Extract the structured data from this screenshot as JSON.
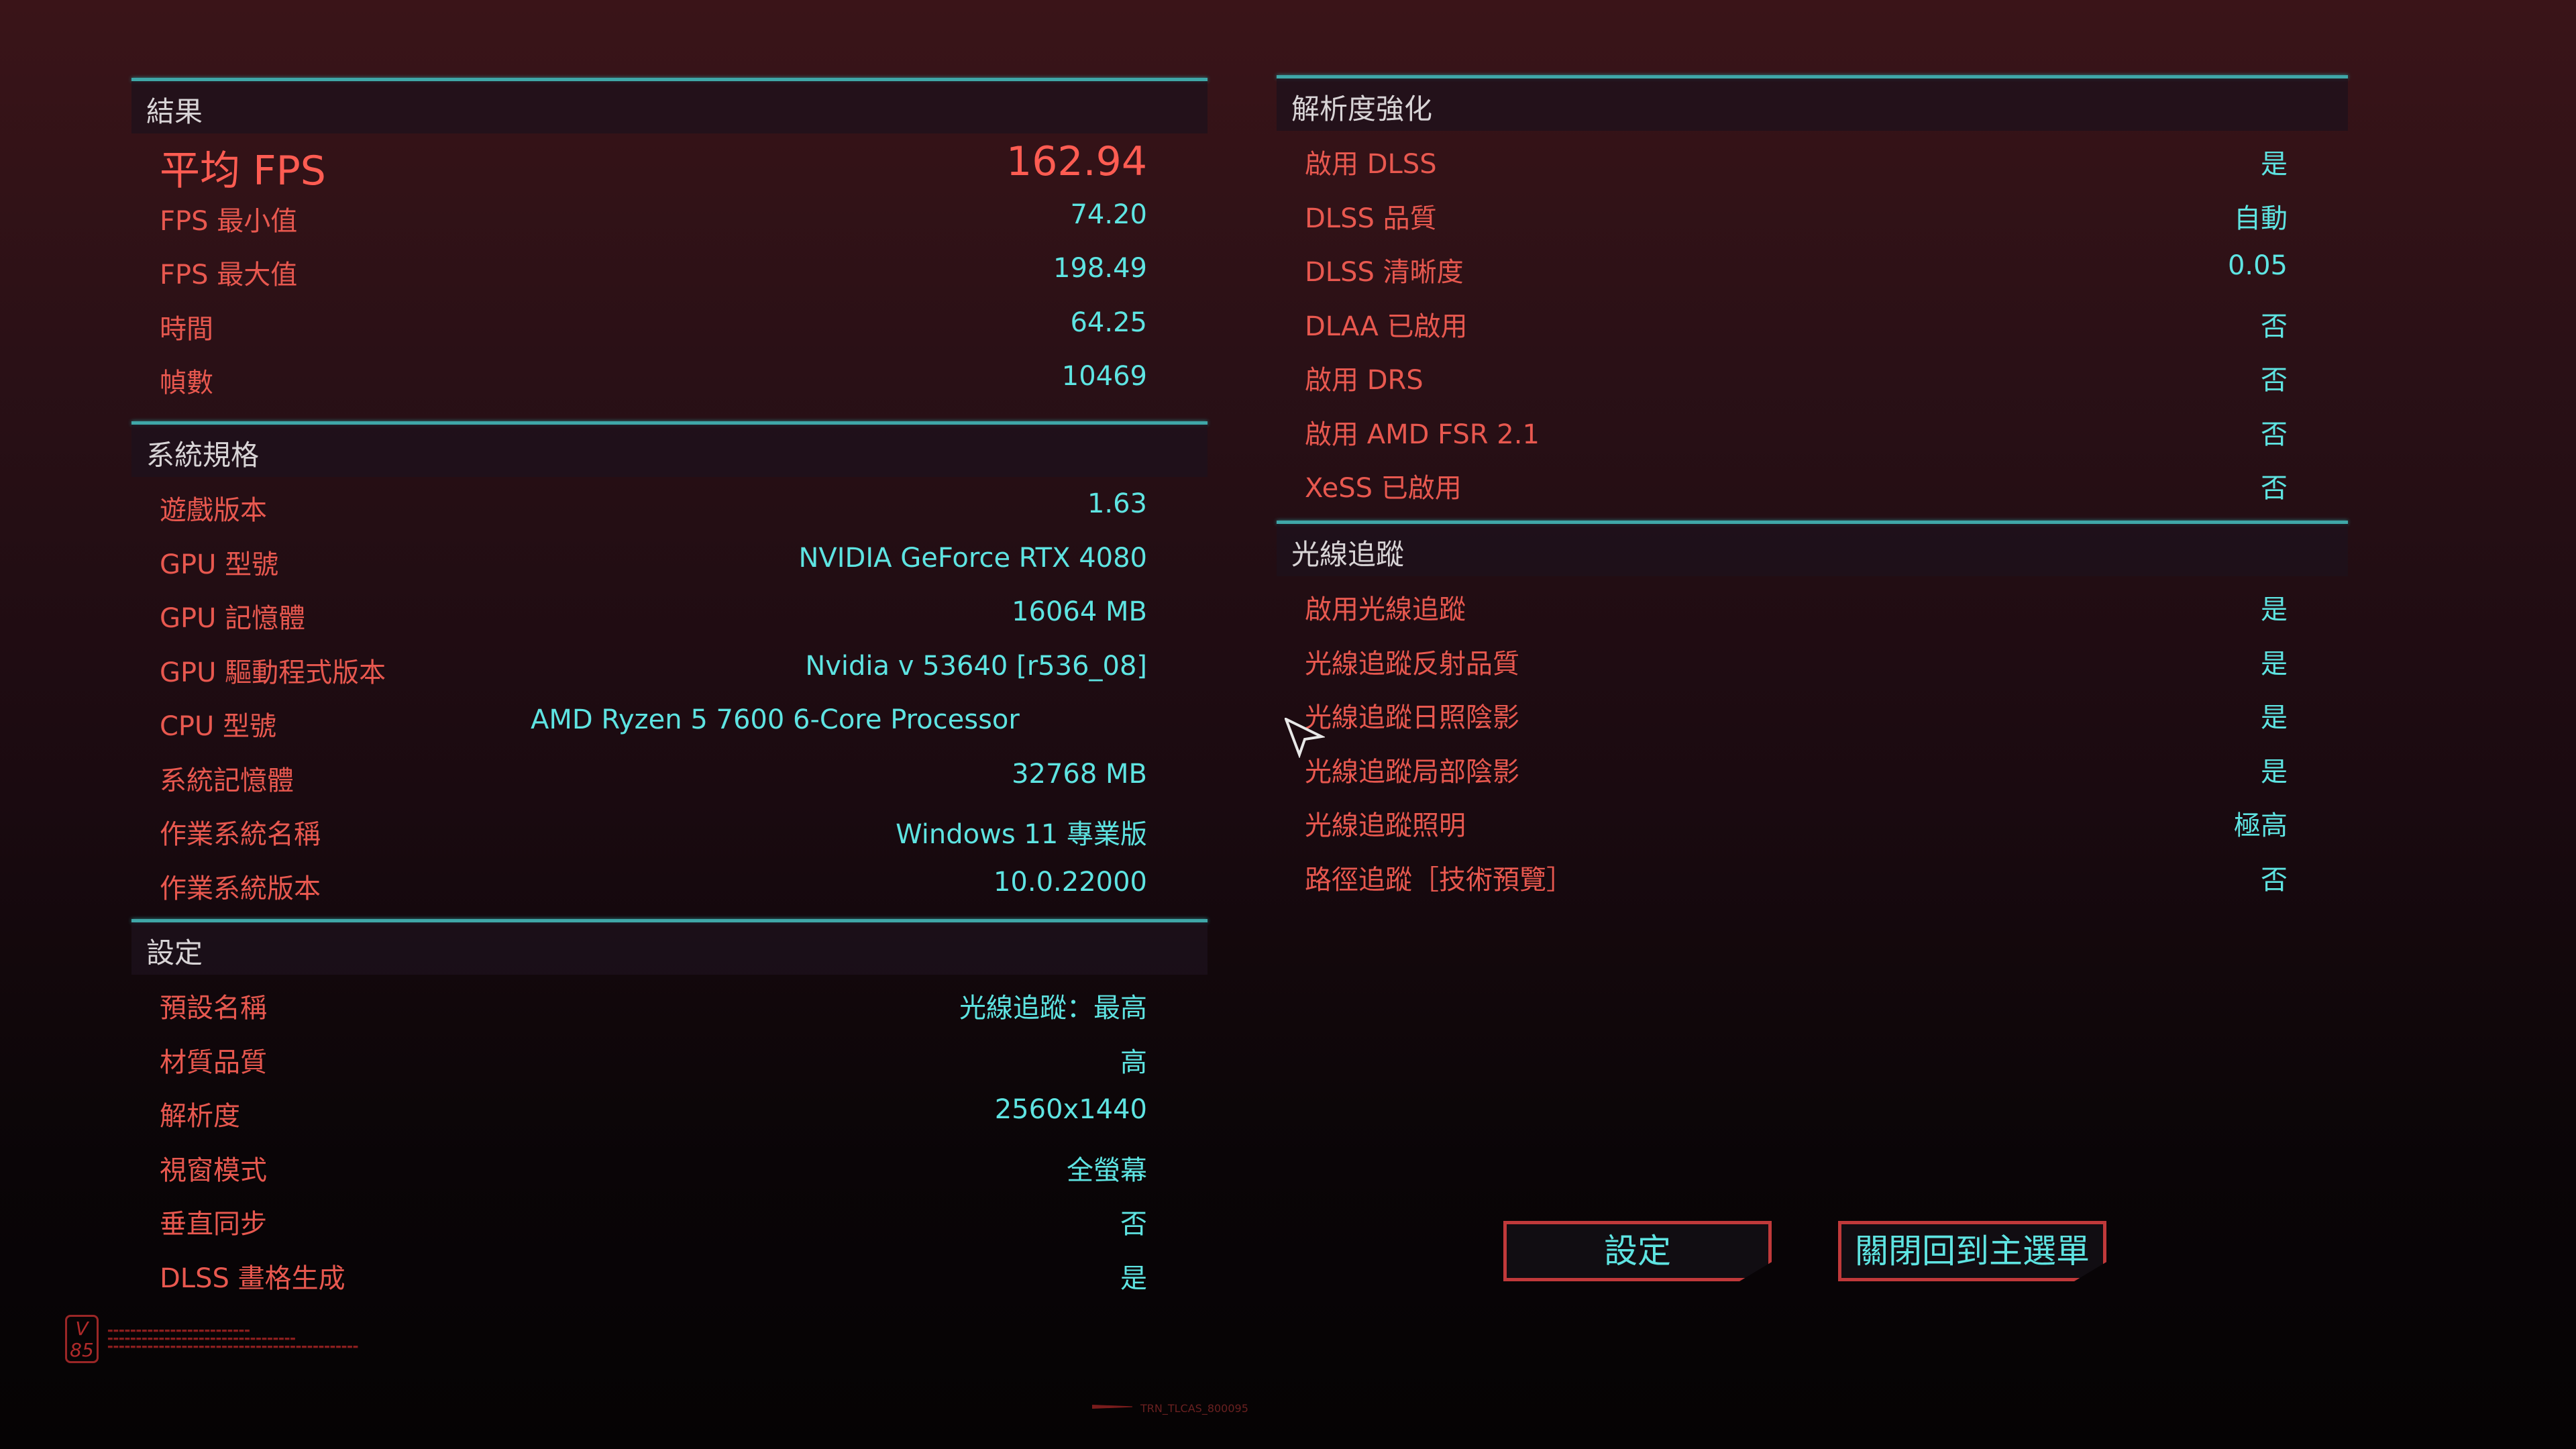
{
  "results": {
    "title": "結果",
    "rows": [
      {
        "label": "平均 FPS",
        "value": "162.94"
      },
      {
        "label": "FPS 最小值",
        "value": "74.20"
      },
      {
        "label": "FPS 最大值",
        "value": "198.49"
      },
      {
        "label": "時間",
        "value": "64.25"
      },
      {
        "label": "幀數",
        "value": "10469"
      }
    ]
  },
  "system": {
    "title": "系統規格",
    "rows": [
      {
        "label": "遊戲版本",
        "value": "1.63"
      },
      {
        "label": "GPU 型號",
        "value": "NVIDIA GeForce RTX 4080"
      },
      {
        "label": "GPU 記憶體",
        "value": "16064 MB"
      },
      {
        "label": "GPU 驅動程式版本",
        "value": "Nvidia v 53640 [r536_08]"
      },
      {
        "label": "CPU 型號",
        "value": "AMD Ryzen 5 7600 6-Core Processor"
      },
      {
        "label": "系統記憶體",
        "value": "32768 MB"
      },
      {
        "label": "作業系統名稱",
        "value": "Windows 11 專業版"
      },
      {
        "label": "作業系統版本",
        "value": "10.0.22000"
      }
    ]
  },
  "settings": {
    "title": "設定",
    "rows": [
      {
        "label": "預設名稱",
        "value": "光線追蹤：最高"
      },
      {
        "label": "材質品質",
        "value": "高"
      },
      {
        "label": "解析度",
        "value": "2560x1440"
      },
      {
        "label": "視窗模式",
        "value": "全螢幕"
      },
      {
        "label": "垂直同步",
        "value": "否"
      },
      {
        "label": "DLSS 畫格生成",
        "value": "是"
      }
    ]
  },
  "upscaling": {
    "title": "解析度強化",
    "rows": [
      {
        "label": "啟用 DLSS",
        "value": "是"
      },
      {
        "label": "DLSS 品質",
        "value": "自動"
      },
      {
        "label": "DLSS 清晰度",
        "value": "0.05"
      },
      {
        "label": "DLAA 已啟用",
        "value": "否"
      },
      {
        "label": "啟用 DRS",
        "value": "否"
      },
      {
        "label": "啟用 AMD FSR 2.1",
        "value": "否"
      },
      {
        "label": "XeSS 已啟用",
        "value": "否"
      }
    ]
  },
  "raytracing": {
    "title": "光線追蹤",
    "rows": [
      {
        "label": "啟用光線追蹤",
        "value": "是"
      },
      {
        "label": "光線追蹤反射品質",
        "value": "是"
      },
      {
        "label": "光線追蹤日照陰影",
        "value": "是"
      },
      {
        "label": "光線追蹤局部陰影",
        "value": "是"
      },
      {
        "label": "光線追蹤照明",
        "value": "極高"
      },
      {
        "label": "路徑追蹤［技術預覽］",
        "value": "否"
      }
    ]
  },
  "buttons": {
    "settings": "設定",
    "close_to_main_menu": "關閉回到主選單"
  },
  "footer": {
    "rating_badge": "V 85",
    "build_code": "TRN_TLCAS_800095"
  },
  "colors": {
    "label": "#e8584f",
    "value": "#5ee4e2",
    "accent_line": "#3fa7a8",
    "button_border": "#c0393a"
  }
}
